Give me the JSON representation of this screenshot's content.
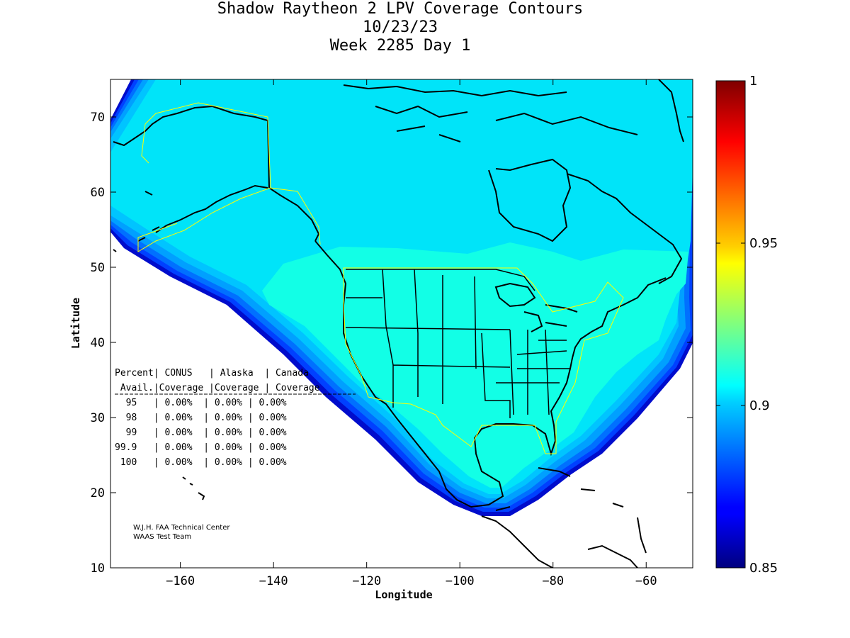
{
  "title": {
    "line1": "Shadow Raytheon 2 LPV Coverage Contours",
    "line2": "10/23/23",
    "line3": "Week 2285 Day 1"
  },
  "axes": {
    "xlabel": "Longitude",
    "ylabel": "Latitude",
    "xlim": [
      -175,
      -50
    ],
    "ylim": [
      10,
      75
    ],
    "xticks": [
      -160,
      -140,
      -120,
      -100,
      -80,
      -60
    ],
    "yticks": [
      10,
      20,
      30,
      40,
      50,
      60,
      70
    ],
    "xtick_labels": [
      "−160",
      "−140",
      "−120",
      "−100",
      "−80",
      "−60"
    ],
    "ytick_labels": [
      "10",
      "20",
      "30",
      "40",
      "50",
      "60",
      "70"
    ]
  },
  "colorbar": {
    "range": [
      0.85,
      1
    ],
    "ticks": [
      0.85,
      0.9,
      0.95,
      1
    ],
    "tick_labels": [
      "0.85",
      "0.9",
      "0.95",
      "1"
    ],
    "colormap": "jet"
  },
  "stats_table": {
    "header1": "Percent| CONUS   | Alaska  | Canada",
    "header2": " Avail.|Coverage |Coverage | Coverage",
    "rows": [
      "  95   | 0.00%  | 0.00% | 0.00%",
      "  98   | 0.00%  | 0.00% | 0.00%",
      "  99   | 0.00%  | 0.00% | 0.00%",
      "99.9   | 0.00%  | 0.00% | 0.00%",
      " 100   | 0.00%  | 0.00% | 0.00%"
    ]
  },
  "credits": {
    "line1": "W.J.H. FAA Technical Center",
    "line2": "WAAS Test Team"
  },
  "colors": {
    "level_092": "#12ffe6",
    "level_090": "#00e4f9",
    "level_089": "#00c4ff",
    "level_088": "#00a0ff",
    "level_087": "#0070ff",
    "level_086": "#0040ff",
    "level_085": "#000ccc",
    "coastline": "#000000",
    "service_area": "#ffff00"
  }
}
